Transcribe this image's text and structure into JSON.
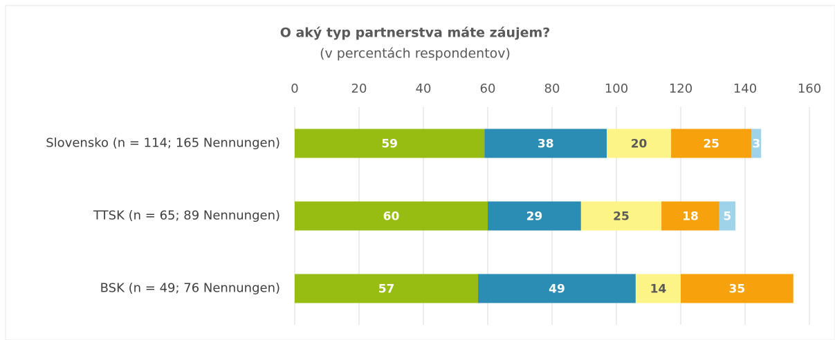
{
  "chart_data": {
    "type": "stacked-bar-horizontal",
    "title": "O aký typ partnerstva máte záujem?",
    "subtitle": "(v percentách respondentov)",
    "categories": [
      "Slovensko (n = 114; 165 Nennungen)",
      "TTSK (n = 65; 89 Nennungen)",
      "BSK (n = 49; 76 Nennungen)"
    ],
    "series": [
      {
        "color": "#97bd13",
        "label_color": "#ffffff",
        "values": [
          59,
          60,
          57
        ]
      },
      {
        "color": "#2b8db3",
        "label_color": "#ffffff",
        "values": [
          38,
          29,
          49
        ]
      },
      {
        "color": "#fdf488",
        "label_color": "#595959",
        "values": [
          20,
          25,
          14
        ]
      },
      {
        "color": "#f7a20c",
        "label_color": "#ffffff",
        "values": [
          25,
          18,
          35
        ]
      },
      {
        "color": "#9fd3ea",
        "label_color": "#ffffff",
        "values": [
          3,
          5,
          null
        ]
      }
    ],
    "xlim": [
      0,
      160
    ],
    "xticks": [
      0,
      20,
      40,
      60,
      80,
      100,
      120,
      140,
      160
    ],
    "grid": true
  }
}
